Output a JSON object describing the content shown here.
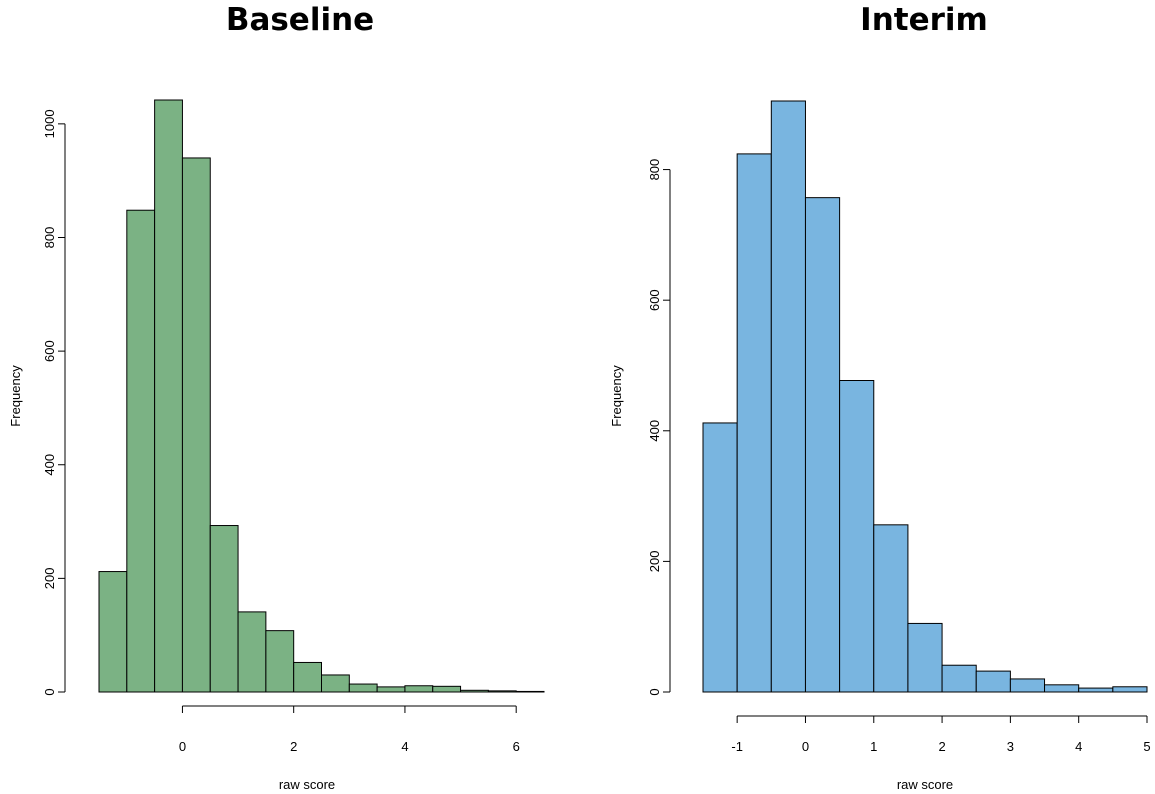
{
  "chart_data": [
    {
      "type": "bar",
      "title": "Baseline",
      "xlabel": "raw score",
      "ylabel": "Frequency",
      "bar_color": "#7bb284",
      "bin_width": 0.5,
      "bin_edges": [
        -1.5,
        -1.0,
        -0.5,
        0.0,
        0.5,
        1.0,
        1.5,
        2.0,
        2.5,
        3.0,
        3.5,
        4.0,
        4.5,
        5.0,
        5.5,
        6.0,
        6.5
      ],
      "values": [
        212,
        848,
        1042,
        940,
        293,
        141,
        108,
        52,
        30,
        14,
        9,
        11,
        10,
        3,
        2,
        1
      ],
      "xlim": [
        -1.5,
        6.5
      ],
      "ylim": [
        0,
        1042
      ],
      "x_ticks": [
        0,
        2,
        4,
        6
      ],
      "x_tick_labels": [
        "0",
        "2",
        "4",
        "6"
      ],
      "y_ticks": [
        0,
        200,
        400,
        600,
        800,
        1000
      ],
      "y_tick_labels": [
        "0",
        "200",
        "400",
        "600",
        "800",
        "1000"
      ]
    },
    {
      "type": "bar",
      "title": "Interim",
      "xlabel": "raw score",
      "ylabel": "Frequency",
      "bar_color": "#79b5e0",
      "bin_width": 0.5,
      "bin_edges": [
        -1.5,
        -1.0,
        -0.5,
        0.0,
        0.5,
        1.0,
        1.5,
        2.0,
        2.5,
        3.0,
        3.5,
        4.0,
        4.5,
        5.0
      ],
      "values": [
        412,
        824,
        905,
        757,
        477,
        256,
        105,
        41,
        32,
        20,
        11,
        6,
        8
      ],
      "xlim": [
        -1.5,
        5.0
      ],
      "ylim": [
        0,
        905
      ],
      "x_ticks": [
        -1,
        0,
        1,
        2,
        3,
        4,
        5
      ],
      "x_tick_labels": [
        "-1",
        "0",
        "1",
        "2",
        "3",
        "4",
        "5"
      ],
      "y_ticks": [
        0,
        200,
        400,
        600,
        800
      ],
      "y_tick_labels": [
        "0",
        "200",
        "400",
        "600",
        "800"
      ]
    }
  ]
}
